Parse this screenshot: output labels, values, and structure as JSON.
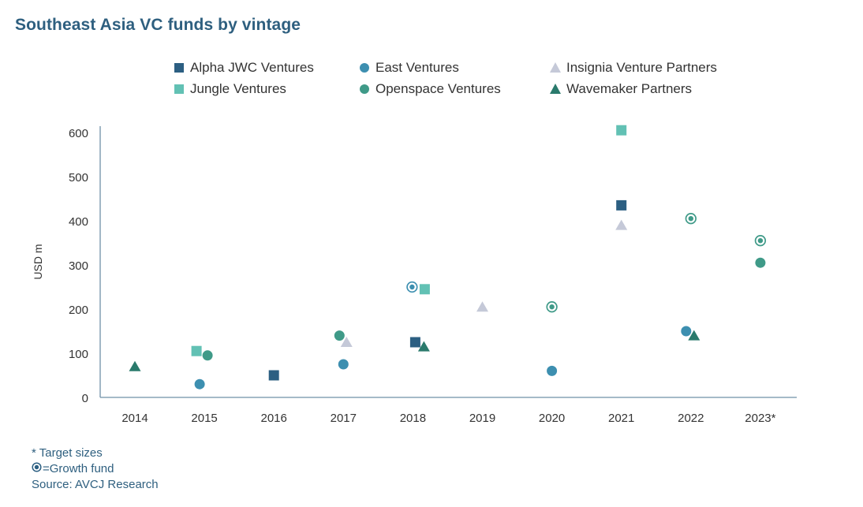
{
  "title": "Southeast Asia VC funds by vintage",
  "notes": {
    "target": "* Target sizes",
    "growth": "=Growth fund",
    "source": "Source: AVCJ Research"
  },
  "colors": {
    "alpha": "#2c5f82",
    "east": "#3d8fb0",
    "insignia": "#c5c9d8",
    "jungle": "#62c1b4",
    "openspace": "#3f9a88",
    "wavemaker": "#2a7a6c",
    "axis": "#6f90a8",
    "title": "#2e5f7f"
  },
  "chart_data": {
    "type": "scatter",
    "title": "Southeast Asia VC funds by vintage",
    "xlabel": "",
    "ylabel": "USD m",
    "ylim": [
      0,
      600
    ],
    "yticks": [
      "0",
      "100",
      "200",
      "300",
      "400",
      "500",
      "600"
    ],
    "categories": [
      "2014",
      "2015",
      "2016",
      "2017",
      "2018",
      "2019",
      "2020",
      "2021",
      "2022",
      "2023*"
    ],
    "series": [
      {
        "key": "alpha",
        "name": "Alpha JWC Ventures",
        "marker": "square",
        "points": [
          {
            "x": "2016",
            "y": 50
          },
          {
            "x": "2018",
            "y": 125
          },
          {
            "x": "2021",
            "y": 435
          }
        ]
      },
      {
        "key": "east",
        "name": "East Ventures",
        "marker": "circle",
        "points": [
          {
            "x": "2015",
            "y": 30
          },
          {
            "x": "2017",
            "y": 75
          },
          {
            "x": "2018",
            "y": 250,
            "growth": true
          },
          {
            "x": "2020",
            "y": 60
          },
          {
            "x": "2022",
            "y": 150
          }
        ]
      },
      {
        "key": "insignia",
        "name": "Insignia Venture Partners",
        "marker": "triangle",
        "points": [
          {
            "x": "2017",
            "y": 125
          },
          {
            "x": "2019",
            "y": 205
          },
          {
            "x": "2021",
            "y": 390
          }
        ]
      },
      {
        "key": "jungle",
        "name": "Jungle Ventures",
        "marker": "square",
        "points": [
          {
            "x": "2015",
            "y": 105
          },
          {
            "x": "2018",
            "y": 245
          },
          {
            "x": "2021",
            "y": 605
          }
        ]
      },
      {
        "key": "openspace",
        "name": "Openspace Ventures",
        "marker": "circle",
        "points": [
          {
            "x": "2015",
            "y": 95
          },
          {
            "x": "2017",
            "y": 140
          },
          {
            "x": "2020",
            "y": 205,
            "growth": true
          },
          {
            "x": "2022",
            "y": 405,
            "growth": true
          },
          {
            "x": "2023*",
            "y": 355,
            "growth": true
          },
          {
            "x": "2023*",
            "y": 305
          }
        ]
      },
      {
        "key": "wavemaker",
        "name": "Wavemaker Partners",
        "marker": "triangle",
        "points": [
          {
            "x": "2014",
            "y": 70
          },
          {
            "x": "2018",
            "y": 115
          },
          {
            "x": "2022",
            "y": 140
          }
        ]
      }
    ]
  }
}
